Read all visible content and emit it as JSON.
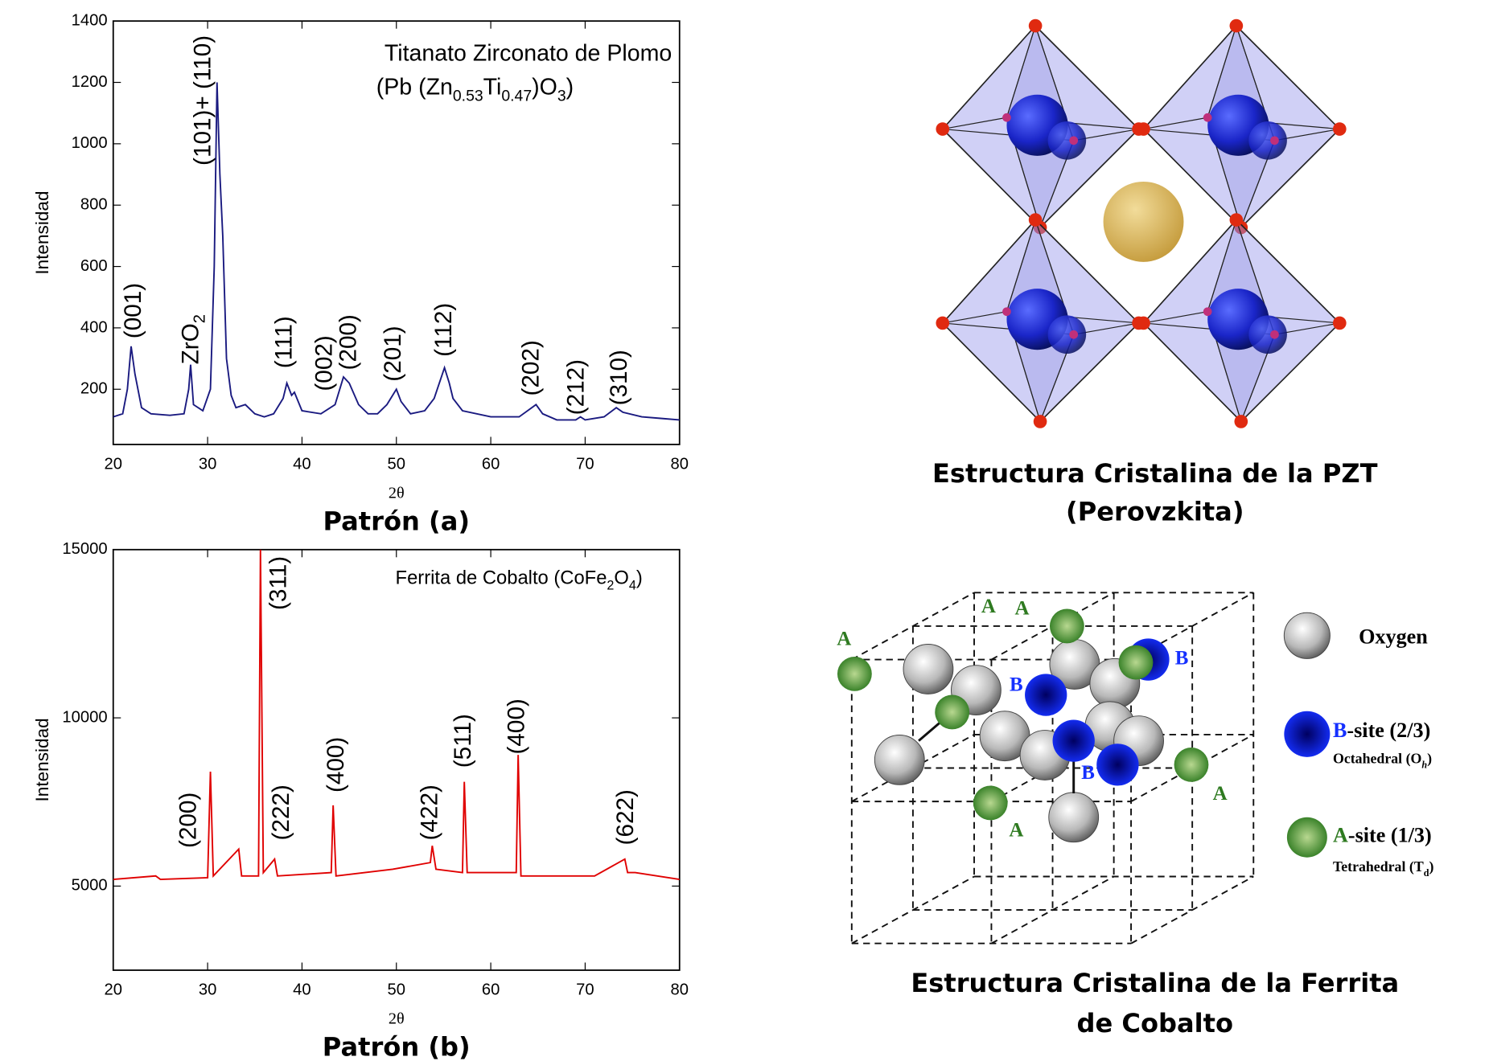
{
  "chart_data": [
    {
      "type": "line",
      "title": "Titanato Zirconato de Plomo",
      "subtitle": [
        "(Pb (Zn",
        "0.53",
        "Ti",
        "0.47",
        ")O",
        "3",
        ")"
      ],
      "xlabel": "2θ",
      "ylabel": "Intensidad",
      "caption": "Patrón (a)",
      "color": "#1a1a80",
      "xlim": [
        20,
        80
      ],
      "xticks": [
        20,
        30,
        40,
        50,
        60,
        70,
        80
      ],
      "ylim": [
        20,
        1400
      ],
      "yticks": [
        200,
        400,
        600,
        800,
        1000,
        1200,
        1400
      ],
      "annotations": [
        "(001)",
        [
          "ZrO",
          "2"
        ],
        "(101)+ (110)",
        "(111)",
        "(002)",
        "(200)",
        "(201)",
        "(112)",
        "(202)",
        "(212)",
        "(310)"
      ],
      "x": [
        20,
        21,
        21.5,
        21.9,
        22.3,
        23,
        24,
        26,
        27.5,
        28,
        28.2,
        28.5,
        29.5,
        30.3,
        30.7,
        31,
        31.3,
        31.6,
        32,
        32.5,
        33,
        34,
        35,
        36,
        37,
        38,
        38.4,
        38.9,
        39.2,
        40,
        42,
        43.5,
        44.4,
        45,
        46,
        47,
        48,
        49,
        50,
        50.5,
        51.5,
        53,
        54,
        55.1,
        55.6,
        56,
        57,
        60,
        63,
        64.8,
        65.5,
        67,
        69,
        69.5,
        70,
        72,
        73.3,
        74,
        76,
        78,
        80
      ],
      "values": [
        110,
        120,
        200,
        340,
        250,
        140,
        120,
        115,
        120,
        200,
        280,
        150,
        130,
        200,
        600,
        1200,
        900,
        700,
        300,
        180,
        140,
        150,
        120,
        110,
        120,
        170,
        220,
        180,
        190,
        130,
        120,
        150,
        240,
        220,
        150,
        120,
        120,
        150,
        200,
        160,
        120,
        130,
        170,
        270,
        220,
        170,
        130,
        110,
        110,
        150,
        120,
        100,
        100,
        110,
        100,
        110,
        140,
        125,
        110,
        105,
        100
      ]
    },
    {
      "type": "line",
      "title": [
        "Ferrita de Cobalto (CoFe",
        "2",
        "O",
        "4",
        ")"
      ],
      "xlabel": "2θ",
      "ylabel": "Intensidad",
      "caption": "Patrón (b)",
      "color": "#e00000",
      "xlim": [
        20,
        80
      ],
      "xticks": [
        20,
        30,
        40,
        50,
        60,
        70,
        80
      ],
      "ylim": [
        2500,
        15000
      ],
      "yticks": [
        5000,
        10000,
        15000
      ],
      "annotations": [
        "(200)",
        "(311)",
        "(222)",
        "(400)",
        "(422)",
        "(511)",
        "(400)",
        "(622)"
      ],
      "x": [
        20,
        24.5,
        25,
        30,
        30.3,
        30.6,
        33.3,
        33.6,
        35.4,
        35.6,
        35.9,
        37.1,
        37.4,
        43.1,
        43.3,
        43.6,
        49.6,
        53.6,
        53.8,
        54.2,
        57,
        57.2,
        57.5,
        62.7,
        62.9,
        63.2,
        71,
        74.2,
        74.5,
        75.3,
        80
      ],
      "values": [
        5200,
        5300,
        5200,
        5250,
        8400,
        5300,
        6100,
        5300,
        5300,
        15000,
        5400,
        5800,
        5300,
        5400,
        7400,
        5300,
        5500,
        5700,
        6200,
        5500,
        5400,
        8100,
        5400,
        5400,
        8900,
        5300,
        5300,
        5800,
        5400,
        5400,
        5200
      ]
    }
  ],
  "perovskite": {
    "caption": [
      "Estructura Cristalina de la PZT",
      "(Perovzkita)"
    ]
  },
  "spinel": {
    "caption": [
      "Estructura Cristalina de la Ferrita",
      "de Cobalto"
    ],
    "site_labels": [
      "A",
      "A",
      "A",
      "A",
      "A",
      "B",
      "B",
      "B"
    ],
    "legend": {
      "oxygen": "Oxygen",
      "b_site": [
        "B",
        "-site (2/3)"
      ],
      "b_note": [
        "Octahedral (O",
        "h",
        ")"
      ],
      "a_site": [
        "A",
        "-site (1/3)"
      ],
      "a_note": [
        "Tetrahedral (T",
        "d",
        ")"
      ]
    }
  }
}
